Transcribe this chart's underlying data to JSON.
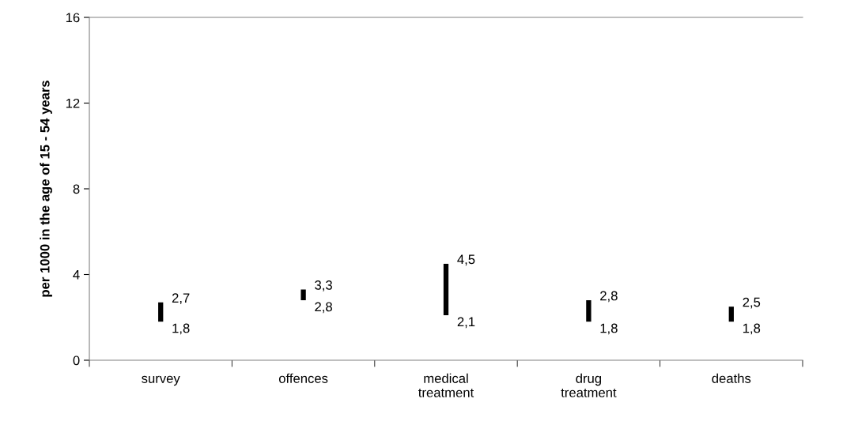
{
  "chart_data": {
    "type": "bar",
    "ylabel": "per 1000 in the age of 15 - 54 years",
    "categories": [
      "survey",
      "offences",
      "medical\ntreatment",
      "drug\ntreatment",
      "deaths"
    ],
    "base": [
      1.8,
      2.8,
      2.1,
      1.8,
      1.8
    ],
    "values": [
      0.9,
      0.5,
      2.4,
      1.0,
      0.7
    ],
    "color": "#000000",
    "ylim": [
      0,
      16
    ],
    "yticks": [
      0,
      4,
      8,
      12,
      16
    ],
    "grid": false,
    "legend": false,
    "annotations": [
      {
        "text": "2,7",
        "x": "survey",
        "y": 2.7
      },
      {
        "text": "1,8",
        "x": "survey",
        "y": 1.8
      },
      {
        "text": "3,3",
        "x": "offences",
        "y": 3.3
      },
      {
        "text": "2,8",
        "x": "offences",
        "y": 2.8
      },
      {
        "text": "4,5",
        "x": "medical\ntreatment",
        "y": 4.5
      },
      {
        "text": "2,1",
        "x": "medical\ntreatment",
        "y": 2.1
      },
      {
        "text": "2,8",
        "x": "drug\ntreatment",
        "y": 2.8
      },
      {
        "text": "1,8",
        "x": "drug\ntreatment",
        "y": 1.8
      },
      {
        "text": "2,5",
        "x": "deaths",
        "y": 2.5
      },
      {
        "text": "1,8",
        "x": "deaths",
        "y": 1.8
      }
    ]
  }
}
